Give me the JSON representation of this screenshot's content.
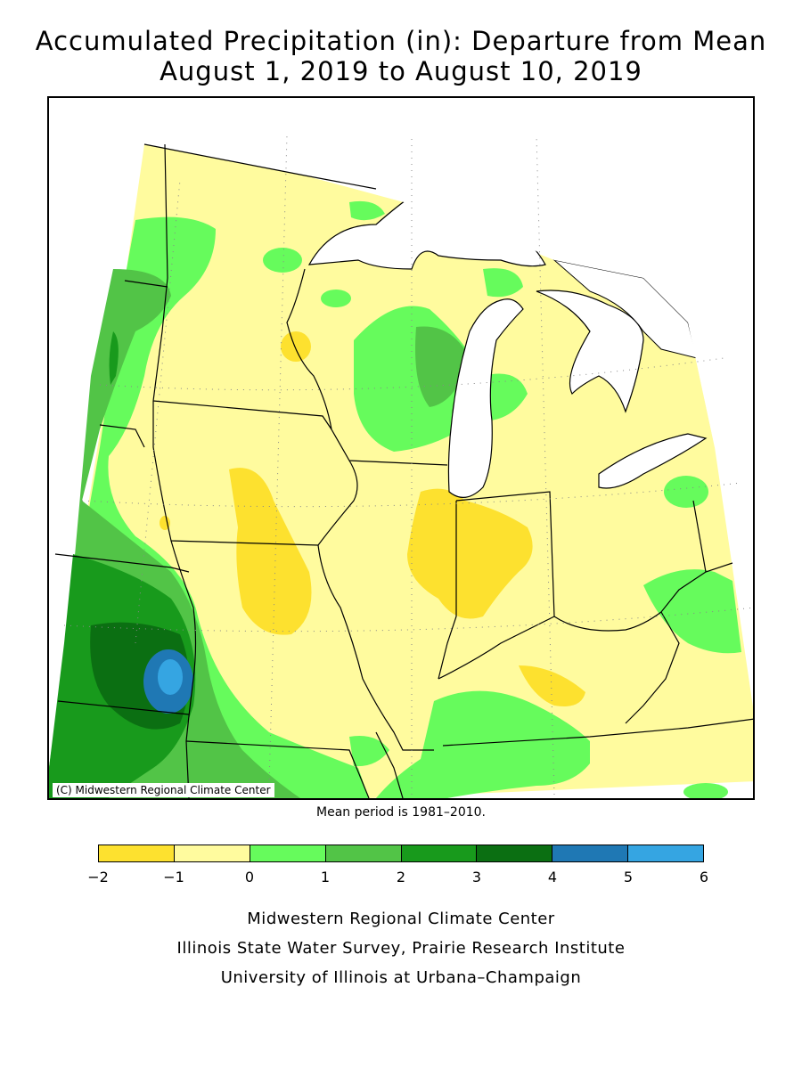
{
  "title_line1": "Accumulated Precipitation (in): Departure from Mean",
  "title_line2": "August 1, 2019 to August 10, 2019",
  "copyright": "(C) Midwestern Regional Climate Center",
  "mean_period": "Mean period is 1981–2010.",
  "legend": {
    "bins": [
      {
        "from": -2,
        "to": -1,
        "color": "#fde12f"
      },
      {
        "from": -1,
        "to": 0,
        "color": "#fffb9e"
      },
      {
        "from": 0,
        "to": 1,
        "color": "#66fb5c"
      },
      {
        "from": 1,
        "to": 2,
        "color": "#52c447"
      },
      {
        "from": 2,
        "to": 3,
        "color": "#189a1c"
      },
      {
        "from": 3,
        "to": 4,
        "color": "#0b6f12"
      },
      {
        "from": 4,
        "to": 5,
        "color": "#1f78b4"
      },
      {
        "from": 5,
        "to": 6,
        "color": "#35a5e2"
      }
    ],
    "tick_labels": [
      "−2",
      "−1",
      "0",
      "1",
      "2",
      "3",
      "4",
      "5",
      "6"
    ]
  },
  "credits": [
    "Midwestern Regional Climate Center",
    "Illinois State Water Survey, Prairie Research Institute",
    "University of Illinois at Urbana–Champaign"
  ]
}
